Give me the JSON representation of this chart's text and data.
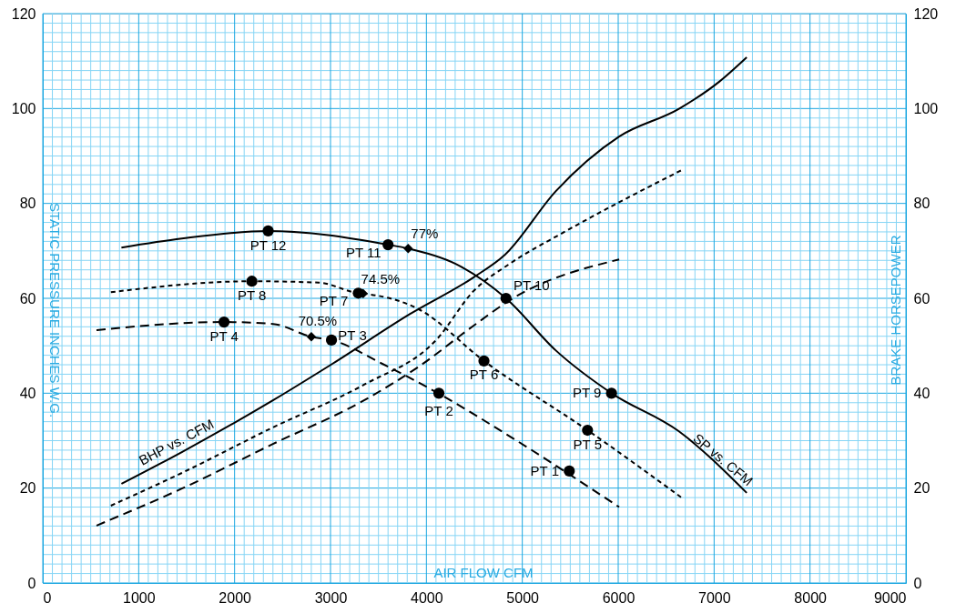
{
  "chart_data": {
    "type": "line",
    "xlabel": "AIR FLOW CFM",
    "ylabel": "STATIC PRESSURE INCHES W.G.",
    "y2label": "BRAKE HORSEPOWER",
    "xlim": [
      0,
      9000
    ],
    "ylim": [
      0,
      120
    ],
    "y2lim": [
      0,
      120
    ],
    "grid": true,
    "marker": "none",
    "xticks": [
      0,
      {
        "value": 100,
        "label": null
      },
      {
        "value": 200,
        "label": null
      },
      {
        "value": 300,
        "label": null
      },
      {
        "value": 400,
        "label": null
      },
      {
        "value": 500,
        "label": null
      },
      {
        "value": 600,
        "label": null
      },
      {
        "value": 700,
        "label": null
      },
      {
        "value": 800,
        "label": null
      },
      {
        "value": 900,
        "label": null
      },
      1000,
      {
        "value": 1100,
        "label": null
      },
      {
        "value": 1200,
        "label": null
      },
      {
        "value": 1300,
        "label": null
      },
      {
        "value": 1400,
        "label": null
      },
      {
        "value": 1500,
        "label": null
      },
      {
        "value": 1600,
        "label": null
      },
      {
        "value": 1700,
        "label": null
      },
      {
        "value": 1800,
        "label": null
      },
      {
        "value": 1900,
        "label": null
      },
      2000,
      {
        "value": 2100,
        "label": null
      },
      {
        "value": 2200,
        "label": null
      },
      {
        "value": 2300,
        "label": null
      },
      {
        "value": 2400,
        "label": null
      },
      {
        "value": 2500,
        "label": null
      },
      {
        "value": 2600,
        "label": null
      },
      {
        "value": 2700,
        "label": null
      },
      {
        "value": 2800,
        "label": null
      },
      {
        "value": 2900,
        "label": null
      },
      3000,
      {
        "value": 3100,
        "label": null
      },
      {
        "value": 3200,
        "label": null
      },
      {
        "value": 3300,
        "label": null
      },
      {
        "value": 3400,
        "label": null
      },
      {
        "value": 3500,
        "label": null
      },
      {
        "value": 3600,
        "label": null
      },
      {
        "value": 3700,
        "label": null
      },
      {
        "value": 3800,
        "label": null
      },
      {
        "value": 3900,
        "label": null
      },
      4000,
      {
        "value": 4100,
        "label": null
      },
      {
        "value": 4200,
        "label": null
      },
      {
        "value": 4300,
        "label": null
      },
      {
        "value": 4400,
        "label": null
      },
      {
        "value": 4500,
        "label": null
      },
      {
        "value": 4600,
        "label": null
      },
      {
        "value": 4700,
        "label": null
      },
      {
        "value": 4800,
        "label": null
      },
      {
        "value": 4900,
        "label": null
      },
      5000,
      {
        "value": 5100,
        "label": null
      },
      {
        "value": 5200,
        "label": null
      },
      {
        "value": 5300,
        "label": null
      },
      {
        "value": 5400,
        "label": null
      },
      {
        "value": 5500,
        "label": null
      },
      {
        "value": 5600,
        "label": null
      },
      {
        "value": 5700,
        "label": null
      },
      {
        "value": 5800,
        "label": null
      },
      {
        "value": 5900,
        "label": null
      },
      6000,
      {
        "value": 6100,
        "label": null
      },
      {
        "value": 6200,
        "label": null
      },
      {
        "value": 6300,
        "label": null
      },
      {
        "value": 6400,
        "label": null
      },
      {
        "value": 6500,
        "label": null
      },
      {
        "value": 6600,
        "label": null
      },
      {
        "value": 6700,
        "label": null
      },
      {
        "value": 6800,
        "label": null
      },
      {
        "value": 6900,
        "label": null
      },
      7000,
      {
        "value": 7100,
        "label": null
      },
      {
        "value": 7200,
        "label": null
      },
      {
        "value": 7300,
        "label": null
      },
      {
        "value": 7400,
        "label": null
      },
      {
        "value": 7500,
        "label": null
      },
      {
        "value": 7600,
        "label": null
      },
      {
        "value": 7700,
        "label": null
      },
      {
        "value": 7800,
        "label": null
      },
      {
        "value": 7900,
        "label": null
      },
      8000,
      {
        "value": 8100,
        "label": null
      },
      {
        "value": 8200,
        "label": null
      },
      {
        "value": 8300,
        "label": null
      },
      {
        "value": 8400,
        "label": null
      },
      {
        "value": 8500,
        "label": null
      },
      {
        "value": 8600,
        "label": null
      },
      {
        "value": 8700,
        "label": null
      },
      {
        "value": 8800,
        "label": null
      },
      {
        "value": 8900,
        "label": null
      },
      9000
    ],
    "yticks": [
      0,
      {
        "value": 2,
        "label": null
      },
      {
        "value": 4,
        "label": null
      },
      {
        "value": 6,
        "label": null
      },
      {
        "value": 8,
        "label": null
      },
      {
        "value": 10,
        "label": null
      },
      {
        "value": 12,
        "label": null
      },
      {
        "value": 14,
        "label": null
      },
      {
        "value": 16,
        "label": null
      },
      {
        "value": 18,
        "label": null
      },
      20,
      {
        "value": 22,
        "label": null
      },
      {
        "value": 24,
        "label": null
      },
      {
        "value": 26,
        "label": null
      },
      {
        "value": 28,
        "label": null
      },
      {
        "value": 30,
        "label": null
      },
      {
        "value": 32,
        "label": null
      },
      {
        "value": 34,
        "label": null
      },
      {
        "value": 36,
        "label": null
      },
      {
        "value": 38,
        "label": null
      },
      40,
      {
        "value": 42,
        "label": null
      },
      {
        "value": 44,
        "label": null
      },
      {
        "value": 46,
        "label": null
      },
      {
        "value": 48,
        "label": null
      },
      {
        "value": 50,
        "label": null
      },
      {
        "value": 52,
        "label": null
      },
      {
        "value": 54,
        "label": null
      },
      {
        "value": 56,
        "label": null
      },
      {
        "value": 58,
        "label": null
      },
      60,
      {
        "value": 62,
        "label": null
      },
      {
        "value": 64,
        "label": null
      },
      {
        "value": 66,
        "label": null
      },
      {
        "value": 68,
        "label": null
      },
      {
        "value": 70,
        "label": null
      },
      {
        "value": 72,
        "label": null
      },
      {
        "value": 74,
        "label": null
      },
      {
        "value": 76,
        "label": null
      },
      {
        "value": 78,
        "label": null
      },
      80,
      {
        "value": 82,
        "label": null
      },
      {
        "value": 84,
        "label": null
      },
      {
        "value": 86,
        "label": null
      },
      {
        "value": 88,
        "label": null
      },
      {
        "value": 90,
        "label": null
      },
      {
        "value": 92,
        "label": null
      },
      {
        "value": 94,
        "label": null
      },
      {
        "value": 96,
        "label": null
      },
      {
        "value": 98,
        "label": null
      },
      100,
      {
        "value": 102,
        "label": null
      },
      {
        "value": 104,
        "label": null
      },
      {
        "value": 106,
        "label": null
      },
      {
        "value": 108,
        "label": null
      },
      {
        "value": 110,
        "label": null
      },
      {
        "value": 112,
        "label": null
      },
      {
        "value": 114,
        "label": null
      },
      {
        "value": 116,
        "label": null
      },
      {
        "value": 118,
        "label": null
      },
      120
    ],
    "y2ticks": [
      0,
      20,
      40,
      60,
      80,
      100,
      120
    ],
    "series": [
      {
        "name": "SP vs. CFM",
        "type": "line",
        "color": "#000000",
        "line_style": "solid",
        "x": [
          820,
          1450,
          2350,
          3600,
          3810,
          4300,
          4830,
          5350,
          5930,
          6630,
          7340
        ],
        "values": [
          70.7,
          72.6,
          74.2,
          71.3,
          70.5,
          67.3,
          60,
          49,
          40,
          32,
          19
        ]
      },
      {
        "type": "line",
        "color": "#000000",
        "line_style": "dotted",
        "x": [
          710,
          2180,
          2880,
          3290,
          3340,
          3920,
          4600,
          5680,
          6660
        ],
        "values": [
          61.3,
          63.6,
          63.3,
          61.1,
          61,
          57.7,
          46.8,
          32.2,
          18
        ]
      },
      {
        "type": "line",
        "color": "#000000",
        "line_style": "dashed",
        "x": [
          560,
          1890,
          2400,
          2800,
          3010,
          3540,
          4130,
          4870,
          6010
        ],
        "values": [
          53.3,
          55,
          54.6,
          51.9,
          51.2,
          46.2,
          39.9,
          30.9,
          16
        ]
      },
      {
        "name": "BHP vs. CFM",
        "type": "line",
        "axis": "y2",
        "color": "#000000",
        "line_style": "solid",
        "x": [
          820,
          1450,
          2400,
          3020,
          3830,
          4490,
          4820,
          5350,
          6010,
          6630,
          7050,
          7340
        ],
        "values": [
          20.9,
          27.6,
          38.5,
          46.2,
          56.7,
          64.4,
          69.2,
          82.6,
          94.1,
          99.9,
          105.6,
          110.8
        ]
      },
      {
        "type": "line",
        "axis": "y2",
        "color": "#000000",
        "line_style": "dotted",
        "x": [
          710,
          1450,
          2400,
          3350,
          4110,
          4490,
          4870,
          5440,
          6660
        ],
        "values": [
          16.3,
          23.2,
          32.8,
          41.8,
          51.4,
          61.5,
          67.3,
          74,
          87
        ]
      },
      {
        "type": "line",
        "axis": "y2",
        "color": "#000000",
        "line_style": "dashed",
        "x": [
          560,
          1450,
          2400,
          3350,
          3920,
          4490,
          4870,
          6010
        ],
        "values": [
          12.1,
          19.9,
          29.3,
          38.5,
          45.6,
          54.2,
          59.6,
          68.2
        ]
      },
      {
        "type": "scatter",
        "marker": "circle",
        "color": "#000000",
        "x": [
          5490,
          4130,
          3010,
          1890,
          5680,
          4600,
          3290,
          2180,
          5930,
          4830,
          3600,
          2350
        ],
        "values": [
          23.6,
          40,
          51.2,
          55,
          32.2,
          46.8,
          61.1,
          63.6,
          40,
          60,
          71.3,
          74.2
        ]
      },
      {
        "type": "scatter",
        "marker": "diamond",
        "color": "#000000",
        "x": [
          3810,
          3340,
          2800
        ],
        "values": [
          70.5,
          61,
          51.9
        ]
      }
    ],
    "annotations": [
      {
        "text": "PT 1",
        "x": 5490,
        "y": 23.6
      },
      {
        "text": "PT 2",
        "x": 4130,
        "y": 40
      },
      {
        "text": "PT 3",
        "x": 3010,
        "y": 51.2
      },
      {
        "text": "PT 4",
        "x": 1890,
        "y": 55
      },
      {
        "text": "PT 5",
        "x": 5680,
        "y": 32.2
      },
      {
        "text": "PT 6",
        "x": 4600,
        "y": 46.8
      },
      {
        "text": "PT 7",
        "x": 3290,
        "y": 61.1
      },
      {
        "text": "PT 8",
        "x": 2180,
        "y": 63.6
      },
      {
        "text": "PT 9",
        "x": 5930,
        "y": 40
      },
      {
        "text": "PT 10",
        "x": 4830,
        "y": 60
      },
      {
        "text": "PT 11",
        "x": 3600,
        "y": 71.3
      },
      {
        "text": "PT 12",
        "x": 2350,
        "y": 74.2
      },
      {
        "text": "77%",
        "x": 3810,
        "y": 70.5
      },
      {
        "text": "74.5%",
        "x": 3340,
        "y": 61
      },
      {
        "text": "70.5%",
        "x": 2800,
        "y": 51.9
      }
    ]
  }
}
